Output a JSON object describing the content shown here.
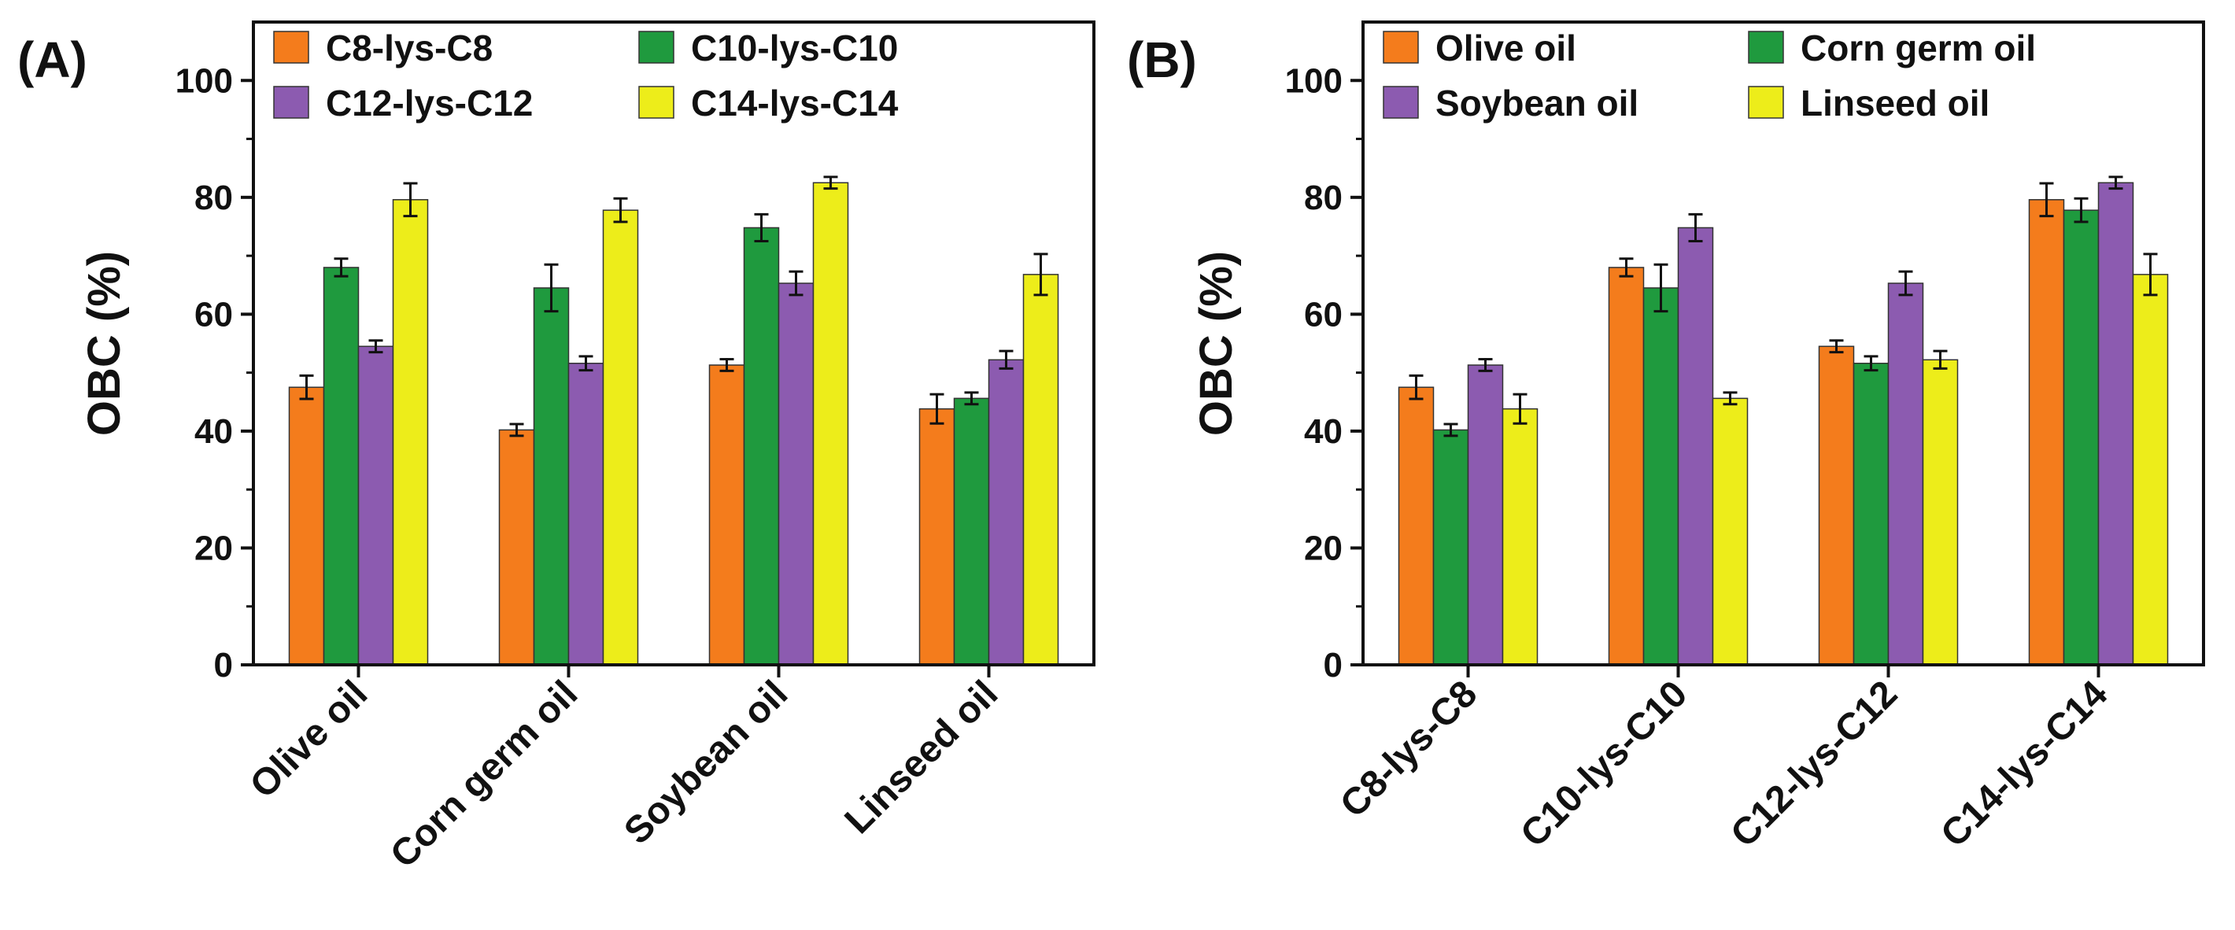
{
  "chart_data": [
    {
      "type": "bar",
      "panel_label": "(A)",
      "categories": [
        "Olive oil",
        "Corn germ oil",
        "Soybean oil",
        "Linseed oil"
      ],
      "series": [
        {
          "name": "C8-lys-C8",
          "values": [
            47.5,
            40.2,
            51.3,
            43.8
          ],
          "errors": [
            2.0,
            1.0,
            1.0,
            2.5
          ]
        },
        {
          "name": "C10-lys-C10",
          "values": [
            68.0,
            64.5,
            74.8,
            45.6
          ],
          "errors": [
            1.5,
            4.0,
            2.3,
            1.0
          ]
        },
        {
          "name": "C12-lys-C12",
          "values": [
            54.5,
            51.6,
            65.3,
            52.2
          ],
          "errors": [
            1.0,
            1.2,
            2.0,
            1.5
          ]
        },
        {
          "name": "C14-lys-C14",
          "values": [
            79.6,
            77.8,
            82.5,
            66.8
          ],
          "errors": [
            2.8,
            2.0,
            1.0,
            3.5
          ]
        }
      ],
      "ylabel": "OBC (%)",
      "xlabel": "",
      "ylim": [
        0,
        110
      ],
      "yticks": [
        "0",
        "20",
        "40",
        "60",
        "80",
        "100"
      ],
      "legend_position": "top-left",
      "grid": false
    },
    {
      "type": "bar",
      "panel_label": "(B)",
      "categories": [
        "C8-lys-C8",
        "C10-lys-C10",
        "C12-lys-C12",
        "C14-lys-C14"
      ],
      "series": [
        {
          "name": "Olive oil",
          "values": [
            47.5,
            68.0,
            54.5,
            79.6
          ],
          "errors": [
            2.0,
            1.5,
            1.0,
            2.8
          ]
        },
        {
          "name": "Corn germ oil",
          "values": [
            40.2,
            64.5,
            51.6,
            77.8
          ],
          "errors": [
            1.0,
            4.0,
            1.2,
            2.0
          ]
        },
        {
          "name": "Soybean oil",
          "values": [
            51.3,
            74.8,
            65.3,
            82.5
          ],
          "errors": [
            1.0,
            2.3,
            2.0,
            1.0
          ]
        },
        {
          "name": "Linseed oil",
          "values": [
            43.8,
            45.6,
            52.2,
            66.8
          ],
          "errors": [
            2.5,
            1.0,
            1.5,
            3.5
          ]
        }
      ],
      "ylabel": "OBC (%)",
      "xlabel": "",
      "ylim": [
        0,
        110
      ],
      "yticks": [
        "0",
        "20",
        "40",
        "60",
        "80",
        "100"
      ],
      "legend_position": "top-left",
      "grid": false
    }
  ],
  "colors": {
    "series": [
      "#f47c1c",
      "#1f9a3e",
      "#8c5bb0",
      "#eded1a"
    ],
    "axis": "#111111",
    "bar_stroke": "#333333"
  }
}
